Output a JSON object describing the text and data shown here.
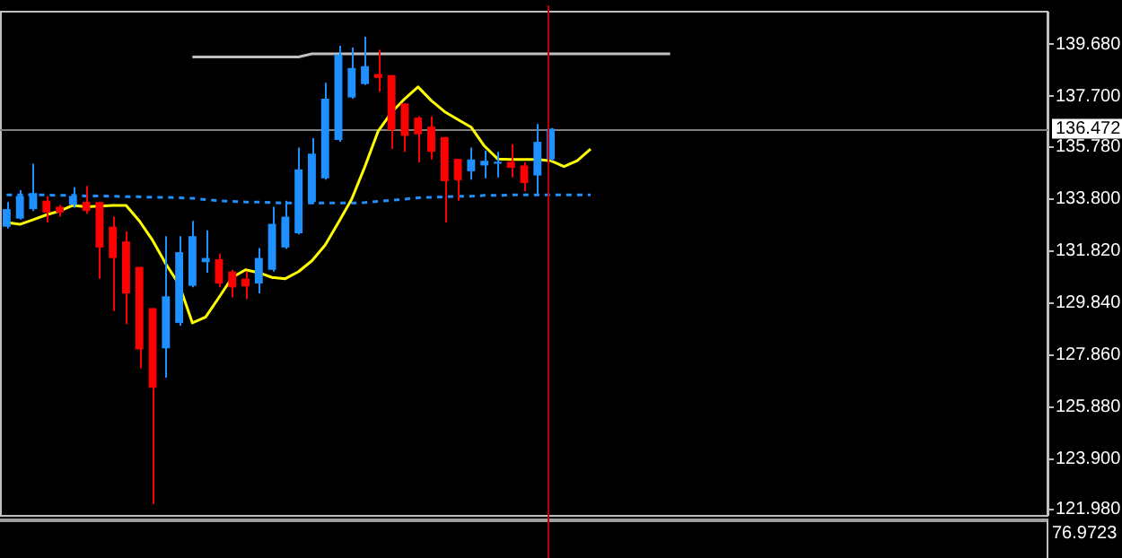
{
  "chart_data": [
    {
      "type": "candlestick",
      "tick_labels": "y",
      "categories": [
        null,
        null,
        null,
        null,
        null,
        null,
        null,
        null,
        null,
        null,
        null,
        null,
        null,
        null,
        null,
        null,
        null,
        null,
        null,
        null,
        null,
        null,
        null,
        null,
        null,
        null,
        null,
        null,
        null,
        null,
        null,
        null,
        null,
        null,
        null,
        null,
        null,
        null,
        null,
        null,
        null,
        null,
        null,
        null,
        null,
        null,
        null,
        null,
        null,
        null,
        null,
        null,
        null,
        null,
        null,
        null,
        null,
        null,
        null,
        null,
        null,
        null,
        null,
        null,
        null,
        null,
        null,
        null,
        null,
        null,
        null,
        null,
        null,
        null,
        null,
        null,
        null,
        null,
        null
      ],
      "ohlc": [
        [
          132.74,
          133.68,
          132.67,
          133.41
        ],
        [
          133.05,
          134.13,
          133.01,
          133.91
        ],
        [
          133.41,
          135.14,
          133.34,
          134.02
        ],
        [
          133.73,
          133.91,
          132.9,
          133.28
        ],
        [
          133.5,
          133.57,
          133.12,
          133.28
        ],
        [
          133.57,
          134.24,
          133.46,
          133.91
        ],
        [
          133.68,
          134.29,
          133.23,
          133.34
        ],
        [
          133.68,
          133.68,
          130.76,
          131.95
        ],
        [
          132.74,
          133.12,
          129.53,
          131.55
        ],
        [
          132.18,
          132.56,
          129.03,
          130.2
        ],
        [
          131.21,
          131.21,
          127.35,
          128.07
        ],
        [
          129.64,
          129.64,
          122.19,
          126.61
        ],
        [
          128.11,
          132.38,
          126.99,
          130.09
        ],
        [
          129.08,
          132.38,
          128.97,
          131.77
        ],
        [
          130.49,
          132.96,
          130.43,
          132.38
        ],
        [
          131.39,
          132.6,
          130.99,
          131.55
        ],
        [
          131.5,
          131.71,
          130.43,
          130.58
        ],
        [
          131.03,
          131.1,
          130.05,
          130.43
        ],
        [
          130.76,
          131.03,
          129.98,
          130.47
        ],
        [
          130.58,
          131.93,
          130.2,
          131.55
        ],
        [
          131.1,
          133.5,
          131.03,
          132.85
        ],
        [
          131.95,
          133.73,
          131.89,
          133.12
        ],
        [
          132.49,
          135.75,
          132.45,
          134.92
        ],
        [
          133.68,
          136.11,
          133.61,
          135.52
        ],
        [
          134.58,
          138.22,
          134.53,
          137.61
        ],
        [
          136.04,
          139.63,
          135.97,
          139.29
        ],
        [
          137.66,
          139.56,
          137.61,
          138.78
        ],
        [
          138.17,
          139.97,
          138.13,
          138.85
        ],
        [
          138.55,
          139.47,
          137.88,
          138.4
        ],
        [
          138.51,
          138.51,
          135.7,
          136.42
        ],
        [
          137.43,
          137.43,
          135.59,
          136.2
        ],
        [
          136.89,
          136.94,
          135.19,
          136.26
        ],
        [
          136.55,
          136.94,
          135.3,
          135.59
        ],
        [
          136.15,
          136.15,
          132.9,
          134.47
        ],
        [
          135.32,
          135.32,
          133.73,
          134.51
        ],
        [
          134.85,
          135.75,
          134.53,
          135.3
        ],
        [
          135.07,
          135.63,
          134.58,
          135.25
        ],
        [
          135.14,
          135.59,
          134.62,
          135.21
        ],
        [
          135.21,
          135.88,
          134.62,
          134.98
        ],
        [
          135.07,
          135.19,
          134.09,
          134.4
        ],
        [
          134.69,
          136.65,
          133.91,
          135.97
        ],
        [
          135.3,
          136.49,
          135.25,
          136.47
        ],
        null,
        null,
        null,
        null,
        null,
        null,
        null,
        null,
        null,
        null,
        null,
        null,
        null,
        null,
        null,
        null,
        null,
        null,
        null,
        null,
        null,
        null,
        null,
        null,
        null,
        null,
        null,
        null,
        null,
        null,
        null,
        null,
        null,
        null,
        null,
        null,
        null
      ],
      "colors": [
        "#1e90ff",
        "#1e90ff",
        "#1e90ff",
        "#ff0000",
        "#ff0000",
        "#1e90ff",
        "#ff0000",
        "#ff0000",
        "#ff0000",
        "#ff0000",
        "#ff0000",
        "#ff0000",
        "#1e90ff",
        "#1e90ff",
        "#1e90ff",
        "#1e90ff",
        "#ff0000",
        "#ff0000",
        "#ff0000",
        "#1e90ff",
        "#1e90ff",
        "#1e90ff",
        "#1e90ff",
        "#1e90ff",
        "#1e90ff",
        "#1e90ff",
        "#1e90ff",
        "#1e90ff",
        "#ff0000",
        "#ff0000",
        "#ff0000",
        "#ff0000",
        "#ff0000",
        "#ff0000",
        "#ff0000",
        "#1e90ff",
        "#1e90ff",
        "#1e90ff",
        "#ff0000",
        "#ff0000",
        "#1e90ff",
        "#1e90ff",
        null,
        null,
        null,
        null,
        null,
        null,
        null,
        null,
        null,
        null,
        null,
        null,
        null,
        null,
        null,
        null,
        null,
        null,
        null,
        null,
        null,
        null,
        null,
        null,
        null,
        null,
        null,
        null,
        null,
        null,
        null,
        null,
        null,
        null,
        null,
        null,
        null
      ],
      "series": [
        {
          "type": "line",
          "color": "#ffff00",
          "values": [
            132.9,
            132.83,
            133.01,
            133.19,
            133.34,
            133.55,
            133.5,
            133.52,
            133.55,
            133.55,
            132.96,
            132.22,
            131.32,
            130.54,
            129.08,
            129.3,
            130.05,
            130.81,
            131.1,
            130.99,
            130.81,
            130.76,
            131.03,
            131.44,
            132.04,
            132.9,
            133.79,
            135.03,
            136.38,
            137.09,
            137.61,
            138.06,
            137.54,
            137.12,
            136.82,
            136.53,
            135.81,
            135.32,
            135.3,
            135.3,
            135.3,
            135.25,
            135.03,
            135.25,
            135.7,
            null,
            null,
            null,
            null,
            null,
            null,
            null,
            null,
            null,
            null,
            null,
            null,
            null,
            null,
            null,
            null,
            null,
            null,
            null,
            null,
            null,
            null,
            null,
            null,
            null,
            null,
            null,
            null,
            null,
            null,
            null,
            null,
            null,
            null
          ]
        },
        {
          "type": "line",
          "color": "#1e90ff",
          "line_style": "dashed",
          "values": [
            133.95,
            133.95,
            133.95,
            133.95,
            133.93,
            133.93,
            133.91,
            133.91,
            133.9,
            133.88,
            133.88,
            133.86,
            133.86,
            133.84,
            133.82,
            133.77,
            133.73,
            133.7,
            133.68,
            133.68,
            133.66,
            133.64,
            133.64,
            133.64,
            133.64,
            133.64,
            133.64,
            133.66,
            133.7,
            133.75,
            133.79,
            133.84,
            133.86,
            133.88,
            133.9,
            133.9,
            133.93,
            133.93,
            133.95,
            133.95,
            133.95,
            133.95,
            133.95,
            133.95,
            133.95,
            null,
            null,
            null,
            null,
            null,
            null,
            null,
            null,
            null,
            null,
            null,
            null,
            null,
            null,
            null,
            null,
            null,
            null,
            null,
            null,
            null,
            null,
            null,
            null,
            null,
            null,
            null,
            null,
            null,
            null,
            null,
            null,
            null,
            null
          ]
        },
        {
          "type": "line",
          "color": "#c0c0c0",
          "values": [
            null,
            null,
            null,
            null,
            null,
            null,
            null,
            null,
            null,
            null,
            null,
            null,
            null,
            null,
            139.2,
            139.2,
            139.2,
            139.2,
            139.2,
            139.2,
            139.2,
            139.2,
            139.2,
            139.32,
            139.32,
            139.32,
            139.32,
            139.32,
            139.32,
            139.32,
            139.32,
            139.32,
            139.32,
            139.32,
            139.32,
            139.32,
            139.32,
            139.32,
            139.32,
            139.32,
            139.32,
            139.32,
            139.32,
            139.32,
            139.32,
            139.32,
            139.32,
            139.32,
            139.32,
            139.32,
            139.32,
            null,
            null,
            null,
            null,
            null,
            null,
            null,
            null,
            null,
            null,
            null,
            null,
            null,
            null,
            null,
            null,
            null,
            null,
            null,
            null,
            null,
            null,
            null,
            null,
            null,
            null,
            null,
            null
          ]
        }
      ],
      "ylim": [
        121.77,
        140.89
      ],
      "yticks": [
        {
          "value": 121.98,
          "label": "121.980"
        },
        {
          "value": 123.9,
          "label": "123.900"
        },
        {
          "value": 125.88,
          "label": "125.880"
        },
        {
          "value": 127.86,
          "label": "127.860"
        },
        {
          "value": 129.84,
          "label": "129.840"
        },
        {
          "value": 131.82,
          "label": "131.820"
        },
        {
          "value": 133.8,
          "label": "133.800"
        },
        {
          "value": 135.78,
          "label": "135.780"
        },
        {
          "value": 137.7,
          "label": "137.700"
        },
        {
          "value": 139.68,
          "label": "139.680"
        }
      ],
      "ref_lines": [
        {
          "axis": "y",
          "value": 136.472,
          "label": "136.472",
          "color": "#808080"
        }
      ]
    },
    {
      "type": "other",
      "annotations": [
        "76.9723"
      ]
    }
  ]
}
